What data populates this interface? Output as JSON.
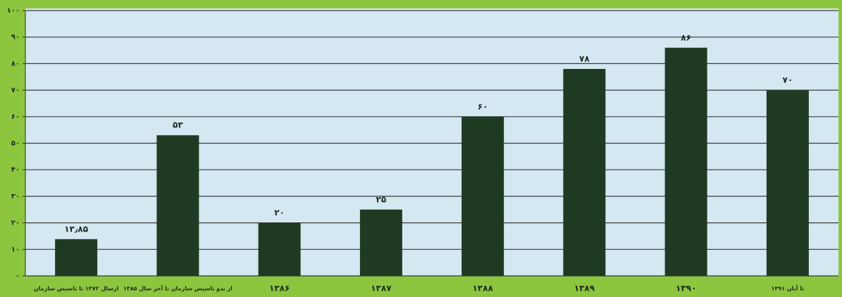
{
  "chart_data": {
    "type": "bar",
    "categories": [
      "ازسال ۱۳۷۲ تا تاسیس سازمان",
      "از بدو تاسیس سازمان تا آخر سال ۱۳۸۵",
      "۱۳۸۶",
      "۱۳۸۷",
      "۱۳۸۸",
      "۱۳۸۹",
      "۱۳۹۰",
      "تا آبان ۱۳۹۱"
    ],
    "values": [
      13.85,
      53,
      20,
      25,
      60,
      78,
      86,
      70
    ],
    "value_labels": [
      "۱۳٫۸۵",
      "۵۳",
      "۲۰",
      "۲۵",
      "۶۰",
      "۷۸",
      "۸۶",
      "۷۰"
    ],
    "color": "#1f3a22",
    "ylim": [
      0,
      100
    ],
    "yticks": [
      {
        "value": 0,
        "label": "۰"
      },
      {
        "value": 10,
        "label": "۱۰"
      },
      {
        "value": 20,
        "label": "۲۰"
      },
      {
        "value": 30,
        "label": "۳۰"
      },
      {
        "value": 40,
        "label": "۴۰"
      },
      {
        "value": 50,
        "label": "۵۰"
      },
      {
        "value": 60,
        "label": "۶۰"
      },
      {
        "value": 70,
        "label": "۷۰"
      },
      {
        "value": 80,
        "label": "۸۰"
      },
      {
        "value": 90,
        "label": "۹۰"
      },
      {
        "value": 100,
        "label": "۱۰۰"
      }
    ],
    "grid": true
  }
}
